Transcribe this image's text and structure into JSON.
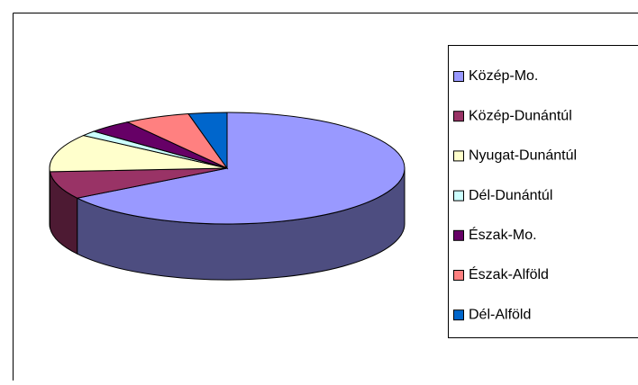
{
  "chart_data": {
    "type": "pie",
    "three_d": true,
    "categories": [
      "Közép-Mo.",
      "Közép-Dunántúl",
      "Nyugat-Dunántúl",
      "Dél-Dunántúl",
      "Észak-Mo.",
      "Észak-Alföld",
      "Dél-Alföld"
    ],
    "values": [
      66,
      8,
      11,
      1.5,
      4,
      6,
      3.5
    ],
    "colors": [
      "#9999ff",
      "#993366",
      "#ffffcc",
      "#ccffff",
      "#660066",
      "#ff8080",
      "#0066cc"
    ],
    "legend": "right"
  }
}
